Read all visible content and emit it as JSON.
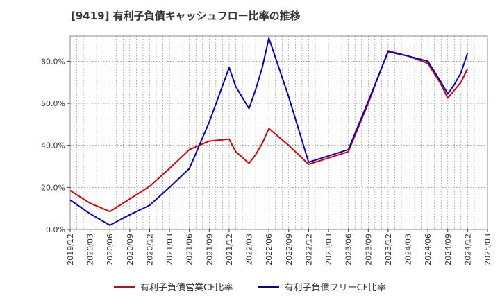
{
  "title": "[9419]  有利子負債キャッシュフロー比率の推移",
  "chart_data": {
    "type": "line",
    "title": "[9419]  有利子負債キャッシュフロー比率の推移",
    "xlabel": "",
    "ylabel": "",
    "x_ticks": [
      "2019/12",
      "2020/03",
      "2020/06",
      "2020/09",
      "2020/12",
      "2021/03",
      "2021/06",
      "2021/09",
      "2021/12",
      "2022/03",
      "2022/06",
      "2022/09",
      "2022/12",
      "2023/03",
      "2023/06",
      "2023/09",
      "2023/12",
      "2024/03",
      "2024/06",
      "2024/09",
      "2024/12",
      "2025/03"
    ],
    "y_ticks": [
      "0.0%",
      "20.0%",
      "40.0%",
      "60.0%",
      "80.0%"
    ],
    "ylim": [
      0,
      92
    ],
    "grid": true,
    "legend_position": "bottom",
    "series": [
      {
        "name": "有利子負債営業CF比率",
        "color": "#dd0000",
        "points": [
          [
            "2019/12",
            18.5
          ],
          [
            "2020/03",
            12.5
          ],
          [
            "2020/06",
            8.5
          ],
          [
            "2020/09",
            14.5
          ],
          [
            "2020/12",
            20.5
          ],
          [
            "2021/03",
            29
          ],
          [
            "2021/06",
            38
          ],
          [
            "2021/09",
            42
          ],
          [
            "2021/12",
            43
          ],
          [
            "2022/01",
            37
          ],
          [
            "2022/03",
            31.5
          ],
          [
            "2022/04",
            35.5
          ],
          [
            "2022/05",
            41
          ],
          [
            "2022/06",
            48
          ],
          [
            "2022/09",
            40
          ],
          [
            "2022/12",
            31
          ],
          [
            "2023/03",
            34
          ],
          [
            "2023/06",
            37
          ],
          [
            "2023/09",
            60
          ],
          [
            "2023/12",
            85
          ],
          [
            "2024/03",
            82.5
          ],
          [
            "2024/06",
            79
          ],
          [
            "2024/08",
            69
          ],
          [
            "2024/09",
            62.5
          ],
          [
            "2024/11",
            70
          ],
          [
            "2024/12",
            76.5
          ]
        ]
      },
      {
        "name": "有利子負債フリーCF比率",
        "color": "#0000cc",
        "points": [
          [
            "2019/12",
            14
          ],
          [
            "2020/03",
            7.5
          ],
          [
            "2020/06",
            2
          ],
          [
            "2020/09",
            7
          ],
          [
            "2020/12",
            11.5
          ],
          [
            "2021/03",
            20
          ],
          [
            "2021/06",
            29
          ],
          [
            "2021/09",
            51
          ],
          [
            "2021/12",
            77
          ],
          [
            "2022/01",
            68
          ],
          [
            "2022/03",
            57.5
          ],
          [
            "2022/04",
            66.5
          ],
          [
            "2022/05",
            77
          ],
          [
            "2022/06",
            91
          ],
          [
            "2022/09",
            63
          ],
          [
            "2022/12",
            32
          ],
          [
            "2023/03",
            35
          ],
          [
            "2023/06",
            38
          ],
          [
            "2023/09",
            61
          ],
          [
            "2023/12",
            84.5
          ],
          [
            "2024/03",
            82.5
          ],
          [
            "2024/06",
            80
          ],
          [
            "2024/08",
            70
          ],
          [
            "2024/09",
            64.5
          ],
          [
            "2024/10",
            69
          ],
          [
            "2024/11",
            74.5
          ],
          [
            "2024/12",
            84
          ]
        ]
      }
    ]
  }
}
